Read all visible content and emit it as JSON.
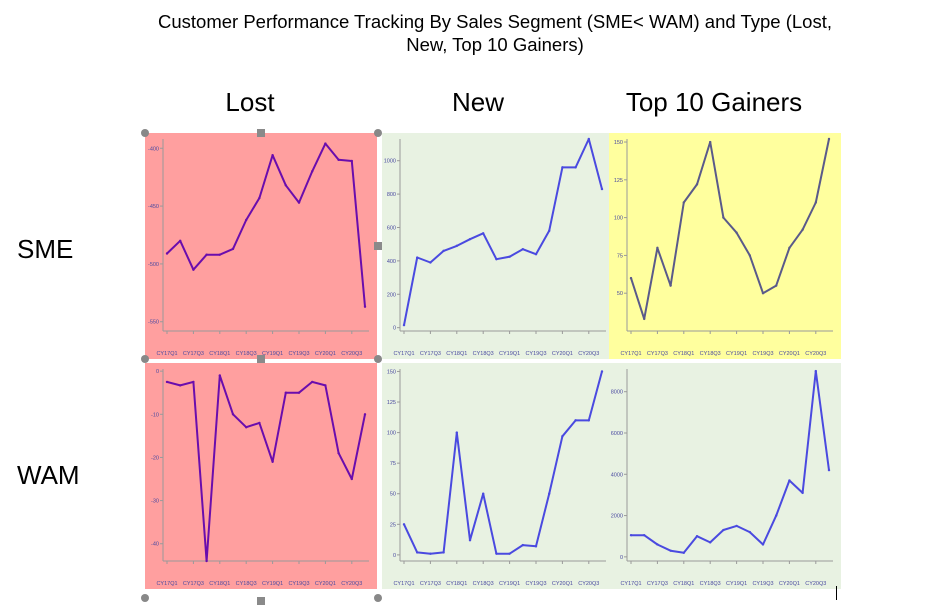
{
  "title_line1": "Customer Performance Tracking By Sales Segment (SME< WAM) and Type (Lost,",
  "title_line2": "New, Top 10 Gainers)",
  "columns": [
    "Lost",
    "New",
    "Top 10 Gainers"
  ],
  "rows": [
    "SME",
    "WAM"
  ],
  "colors": {
    "lost_bg": "#ff9f9f",
    "new_bg": "#e8f2e2",
    "top_sme_bg": "#ffff9e",
    "top_wam_bg": "#e8f2e2",
    "lost_line": "#6a0dad",
    "new_line": "#4a4ae0",
    "top_sme_line": "#5a5a8a",
    "top_wam_line": "#4a4ae0"
  },
  "chart_data": [
    {
      "type": "line",
      "segment": "SME",
      "customer_type": "Lost",
      "x": [
        "CY17Q1",
        "CY17Q2",
        "CY17Q3",
        "CY17Q4",
        "CY18Q1",
        "CY18Q2",
        "CY18Q3",
        "CY18Q4",
        "CY19Q1",
        "CY19Q2",
        "CY19Q3",
        "CY19Q4",
        "CY20Q1",
        "CY20Q2",
        "CY20Q3",
        "CY20Q4"
      ],
      "xticks": [
        "CY17Q1",
        "CY17Q3",
        "CY18Q1",
        "CY18Q3",
        "CY19Q1",
        "CY19Q3",
        "CY20Q1",
        "CY20Q3"
      ],
      "values": [
        -491,
        -480,
        -505,
        -492,
        -492,
        -487,
        -462,
        -443,
        -406,
        -432,
        -447,
        -420,
        -396,
        -410,
        -411,
        -537
      ],
      "ylim": [
        -558,
        -392
      ],
      "yticks": [
        -400,
        -450,
        -500,
        -550
      ]
    },
    {
      "type": "line",
      "segment": "SME",
      "customer_type": "New",
      "x": [
        "CY17Q1",
        "CY17Q2",
        "CY17Q3",
        "CY17Q4",
        "CY18Q1",
        "CY18Q2",
        "CY18Q3",
        "CY18Q4",
        "CY19Q1",
        "CY19Q2",
        "CY19Q3",
        "CY19Q4",
        "CY20Q1",
        "CY20Q2",
        "CY20Q3",
        "CY20Q4"
      ],
      "xticks": [
        "CY17Q1",
        "CY17Q3",
        "CY18Q1",
        "CY18Q3",
        "CY19Q1",
        "CY19Q3",
        "CY20Q1",
        "CY20Q3"
      ],
      "values": [
        15,
        420,
        390,
        460,
        490,
        530,
        565,
        410,
        425,
        470,
        440,
        580,
        960,
        960,
        1130,
        830
      ],
      "ylim": [
        -20,
        1130
      ],
      "yticks": [
        0,
        200,
        400,
        600,
        800,
        1000
      ]
    },
    {
      "type": "line",
      "segment": "SME",
      "customer_type": "Top 10 Gainers",
      "x": [
        "CY17Q1",
        "CY17Q2",
        "CY17Q3",
        "CY17Q4",
        "CY18Q1",
        "CY18Q2",
        "CY18Q3",
        "CY18Q4",
        "CY19Q1",
        "CY19Q2",
        "CY19Q3",
        "CY19Q4",
        "CY20Q1",
        "CY20Q2",
        "CY20Q3",
        "CY20Q4"
      ],
      "xticks": [
        "CY17Q1",
        "CY17Q3",
        "CY18Q1",
        "CY18Q3",
        "CY19Q1",
        "CY19Q3",
        "CY20Q1",
        "CY20Q3"
      ],
      "values": [
        60,
        33,
        80,
        55,
        110,
        122,
        150,
        100,
        90,
        75,
        50,
        55,
        80,
        92,
        110,
        152
      ],
      "ylim": [
        25,
        152
      ],
      "yticks": [
        50,
        75,
        100,
        125,
        150
      ]
    },
    {
      "type": "line",
      "segment": "WAM",
      "customer_type": "Lost",
      "x": [
        "CY17Q1",
        "CY17Q2",
        "CY17Q3",
        "CY17Q4",
        "CY18Q1",
        "CY18Q2",
        "CY18Q3",
        "CY18Q4",
        "CY19Q1",
        "CY19Q2",
        "CY19Q3",
        "CY19Q4",
        "CY20Q1",
        "CY20Q2",
        "CY20Q3",
        "CY20Q4"
      ],
      "xticks": [
        "CY17Q1",
        "CY17Q3",
        "CY18Q1",
        "CY18Q3",
        "CY19Q1",
        "CY19Q3",
        "CY20Q1",
        "CY20Q3"
      ],
      "values": [
        -2.5,
        -3.3,
        -2.5,
        -44,
        -1,
        -10,
        -13,
        -12,
        -21,
        -5,
        -5,
        -2.5,
        -3.3,
        -19,
        -25,
        -10
      ],
      "ylim": [
        -44,
        0.5
      ],
      "yticks": [
        0,
        -10,
        -20,
        -30,
        -40
      ]
    },
    {
      "type": "line",
      "segment": "WAM",
      "customer_type": "New",
      "x": [
        "CY17Q1",
        "CY17Q2",
        "CY17Q3",
        "CY17Q4",
        "CY18Q1",
        "CY18Q2",
        "CY18Q3",
        "CY18Q4",
        "CY19Q1",
        "CY19Q2",
        "CY19Q3",
        "CY19Q4",
        "CY20Q1",
        "CY20Q2",
        "CY20Q3",
        "CY20Q4"
      ],
      "xticks": [
        "CY17Q1",
        "CY17Q3",
        "CY18Q1",
        "CY18Q3",
        "CY19Q1",
        "CY19Q3",
        "CY20Q1",
        "CY20Q3"
      ],
      "values": [
        25,
        2,
        1,
        2,
        100,
        12,
        50,
        1,
        1,
        8,
        7,
        50,
        97,
        110,
        110,
        150
      ],
      "ylim": [
        -5,
        152
      ],
      "yticks": [
        0,
        25,
        50,
        75,
        100,
        125,
        150
      ]
    },
    {
      "type": "line",
      "segment": "WAM",
      "customer_type": "Top 10 Gainers",
      "x": [
        "CY17Q1",
        "CY17Q2",
        "CY17Q3",
        "CY17Q4",
        "CY18Q1",
        "CY18Q2",
        "CY18Q3",
        "CY18Q4",
        "CY19Q1",
        "CY19Q2",
        "CY19Q3",
        "CY19Q4",
        "CY20Q1",
        "CY20Q2",
        "CY20Q3",
        "CY20Q4"
      ],
      "xticks": [
        "CY17Q1",
        "CY17Q3",
        "CY18Q1",
        "CY18Q3",
        "CY19Q1",
        "CY19Q3",
        "CY20Q1",
        "CY20Q3"
      ],
      "values": [
        1050,
        1050,
        600,
        300,
        200,
        1000,
        700,
        1300,
        1500,
        1200,
        600,
        2000,
        3700,
        3100,
        9000,
        4200
      ],
      "ylim": [
        -200,
        9100
      ],
      "yticks": [
        0,
        2000,
        4000,
        6000,
        8000
      ]
    }
  ]
}
